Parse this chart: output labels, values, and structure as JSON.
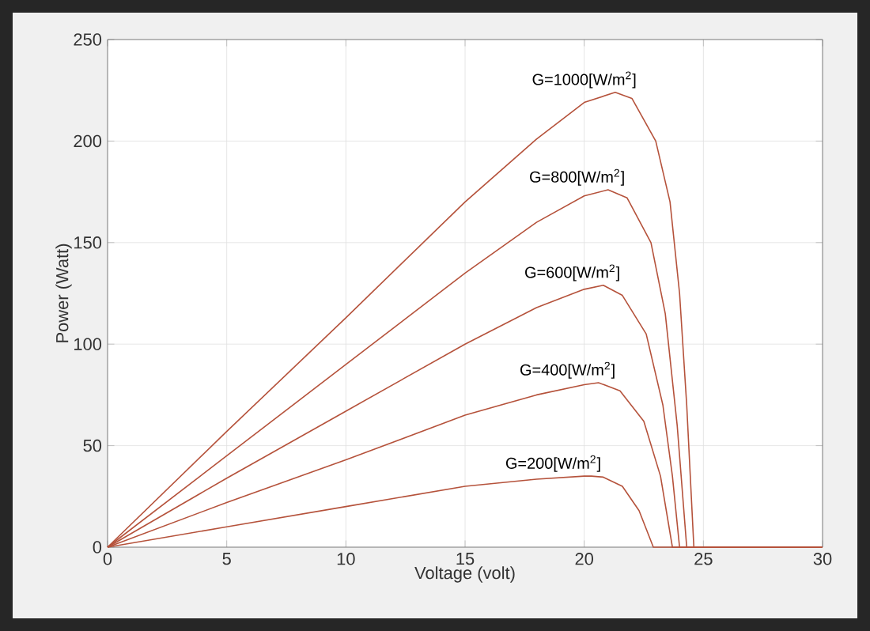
{
  "chart_data": {
    "type": "line",
    "xlabel": "Voltage (volt)",
    "ylabel": "Power (Watt)",
    "xlim": [
      0,
      30
    ],
    "ylim": [
      0,
      250
    ],
    "xticks": [
      0,
      5,
      10,
      15,
      20,
      25,
      30
    ],
    "yticks": [
      0,
      50,
      100,
      150,
      200,
      250
    ],
    "grid": true,
    "marker": "none",
    "line_style": "solid",
    "series": [
      {
        "name": "G=1000[W/m$^{2}$]",
        "color": "#b5523b",
        "x": [
          0,
          5,
          10,
          15,
          18,
          20,
          21.3,
          22,
          23,
          23.6,
          24,
          24.3,
          24.6,
          30
        ],
        "values": [
          0,
          57,
          113,
          170,
          201,
          219,
          224,
          221,
          200,
          170,
          125,
          70,
          0,
          0
        ]
      },
      {
        "name": "G=800[W/m$^{2}$]",
        "color": "#b5523b",
        "x": [
          0,
          5,
          10,
          15,
          18,
          20,
          21,
          21.8,
          22.8,
          23.4,
          23.9,
          24.3,
          30
        ],
        "values": [
          0,
          45,
          90,
          135,
          160,
          173,
          176,
          172,
          150,
          115,
          60,
          0,
          0
        ]
      },
      {
        "name": "G=600[W/m$^{2}$]",
        "color": "#b5523b",
        "x": [
          0,
          5,
          10,
          15,
          18,
          20,
          20.8,
          21.6,
          22.6,
          23.3,
          23.7,
          24,
          30
        ],
        "values": [
          0,
          34,
          67,
          100,
          118,
          127,
          129,
          124,
          105,
          70,
          35,
          0,
          0
        ]
      },
      {
        "name": "G=400[W/m$^{2}$]",
        "color": "#b5523b",
        "x": [
          0,
          5,
          10,
          15,
          18,
          20,
          20.6,
          21.5,
          22.5,
          23.2,
          23.7,
          30
        ],
        "values": [
          0,
          22,
          43,
          65,
          75,
          80,
          81,
          77,
          62,
          35,
          0,
          0
        ]
      },
      {
        "name": "G=200[W/m$^{2}$]",
        "color": "#b5523b",
        "x": [
          0,
          5,
          10,
          15,
          18,
          20,
          20.3,
          20.8,
          21.6,
          22.3,
          22.9,
          30
        ],
        "values": [
          0,
          10,
          20,
          30,
          33.5,
          35,
          35,
          34.5,
          30,
          18,
          0,
          0
        ]
      }
    ]
  }
}
